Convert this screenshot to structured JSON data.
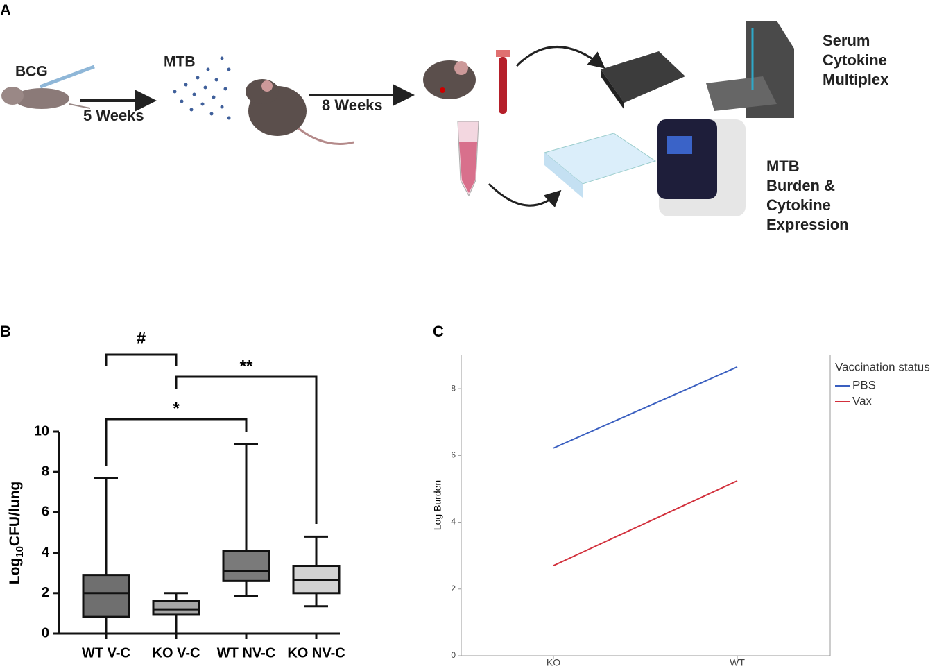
{
  "panel_a": {
    "label": "A",
    "bcg": "BCG",
    "step1": "5 Weeks",
    "mtb": "MTB",
    "step2": "8 Weeks",
    "serum": [
      "Serum",
      "Cytokine",
      "Multiplex"
    ],
    "burden": [
      "MTB",
      "Burden &",
      "Cytokine",
      "Expression"
    ]
  },
  "chart_data": [
    {
      "type": "box",
      "panel": "B",
      "y_label": [
        "Log",
        "10",
        "CFU/lung"
      ],
      "categories": [
        "WT V-C",
        "KO V-C",
        "WT NV-C",
        "KO NV-C"
      ],
      "min": [
        0,
        0,
        1.85,
        1.35
      ],
      "q1": [
        0.82,
        0.93,
        2.6,
        2.0
      ],
      "median": [
        2.0,
        1.2,
        3.1,
        2.65
      ],
      "q3": [
        2.9,
        1.6,
        4.1,
        3.35
      ],
      "max": [
        7.7,
        2.0,
        9.4,
        4.8
      ],
      "colors": [
        "#6f6f6f",
        "#a6a6a6",
        "#7a7a7a",
        "#d2d2d2"
      ],
      "ylim": [
        0,
        10
      ],
      "yticks": [
        0,
        2,
        4,
        6,
        8,
        10
      ],
      "annotations": [
        {
          "text": "#",
          "from": 0,
          "to": 1
        },
        {
          "text": "**",
          "from": 1,
          "to": 3
        },
        {
          "text": "*",
          "from": 0,
          "to": 2
        }
      ]
    },
    {
      "type": "line",
      "panel": "C",
      "y_label": "Log Burden",
      "categories": [
        "KO",
        "WT"
      ],
      "legend_title": "Vaccination status",
      "series": [
        {
          "name": "PBS",
          "color": "#3a5fc0",
          "values": [
            6.22,
            8.65
          ]
        },
        {
          "name": "Vax",
          "color": "#d2303c",
          "values": [
            2.7,
            5.24
          ]
        }
      ],
      "ylim": [
        0,
        9
      ],
      "yticks": [
        0,
        2,
        4,
        6,
        8
      ]
    }
  ]
}
